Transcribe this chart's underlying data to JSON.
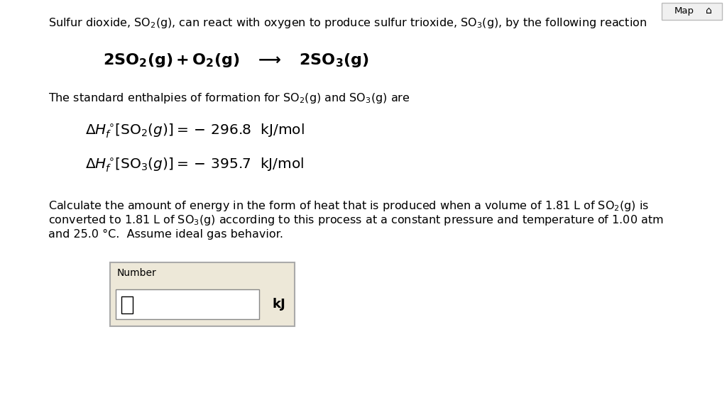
{
  "background_color": "#ffffff",
  "map_button_text": "Map",
  "box_bg": "#ede8d8",
  "input_bg": "#ffffff",
  "border_color": "#aaaaaa",
  "unit_label": "kJ",
  "number_label": "Number"
}
